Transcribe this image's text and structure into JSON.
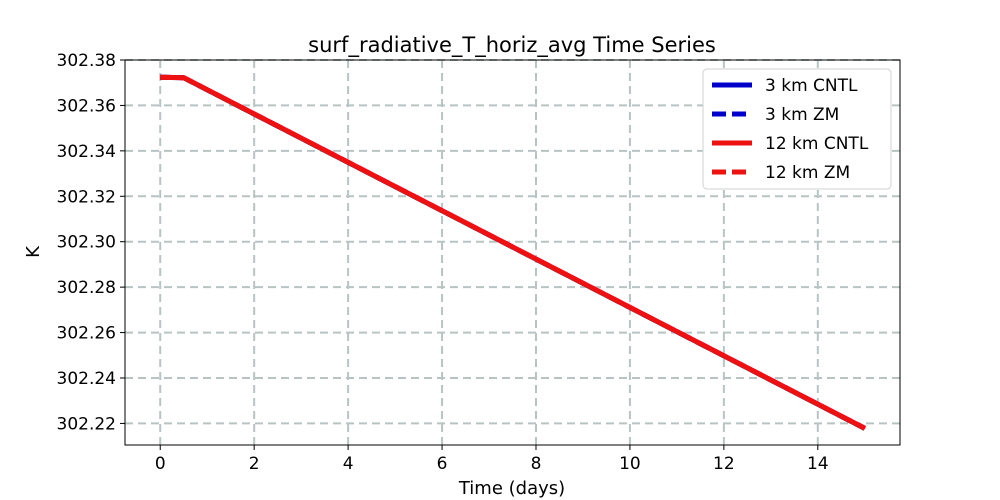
{
  "chart_data": {
    "type": "line",
    "title": "surf_radiative_T_horiz_avg Time Series",
    "xlabel": "Time (days)",
    "ylabel": "K",
    "xlim": [
      -0.75,
      15.75
    ],
    "ylim": [
      302.2105,
      302.38
    ],
    "xticks": [
      0,
      2,
      4,
      6,
      8,
      10,
      12,
      14
    ],
    "xtick_labels": [
      "0",
      "2",
      "4",
      "6",
      "8",
      "10",
      "12",
      "14"
    ],
    "yticks": [
      302.22,
      302.24,
      302.26,
      302.28,
      302.3,
      302.32,
      302.34,
      302.36,
      302.38
    ],
    "ytick_labels": [
      "302.22",
      "302.24",
      "302.26",
      "302.28",
      "302.30",
      "302.32",
      "302.34",
      "302.36",
      "302.38"
    ],
    "grid": true,
    "legend_position": "top-right",
    "series": [
      {
        "name": "3 km CNTL",
        "color": "#0000cc",
        "style": "solid",
        "x": [
          0,
          0.5,
          15
        ],
        "y": [
          302.3724,
          302.3722,
          302.2178
        ]
      },
      {
        "name": "3 km ZM",
        "color": "#0000cc",
        "style": "dashed",
        "x": [
          0,
          0.5,
          15
        ],
        "y": [
          302.3724,
          302.3722,
          302.2178
        ]
      },
      {
        "name": "12 km CNTL",
        "color": "#ee1111",
        "style": "solid",
        "x": [
          0,
          0.5,
          15
        ],
        "y": [
          302.3724,
          302.3722,
          302.2178
        ]
      },
      {
        "name": "12 km ZM",
        "color": "#ee1111",
        "style": "dashed",
        "x": [
          0,
          0.5,
          15
        ],
        "y": [
          302.3724,
          302.3722,
          302.2178
        ]
      }
    ]
  }
}
